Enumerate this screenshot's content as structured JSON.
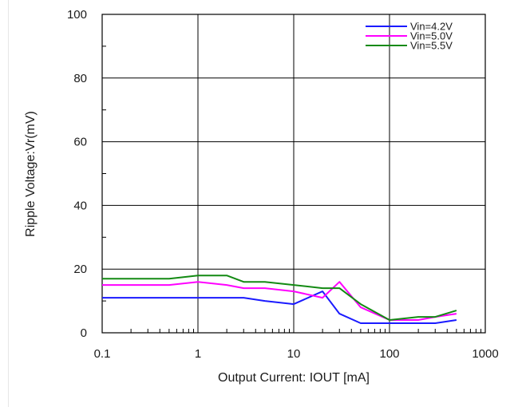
{
  "chart_data": {
    "type": "line",
    "xlabel": "Output Current: IOUT [mA]",
    "ylabel": "Ripple Voltage:Vr(mV)",
    "x_scale": "log",
    "xlim": [
      0.1,
      1000
    ],
    "ylim": [
      0,
      100
    ],
    "x_tick_labels": [
      "0.1",
      "1",
      "10",
      "100",
      "1000"
    ],
    "x_tick_values": [
      0.1,
      1,
      10,
      100,
      1000
    ],
    "y_tick_labels": [
      "0",
      "20",
      "40",
      "60",
      "80",
      "100"
    ],
    "y_tick_values": [
      0,
      20,
      40,
      60,
      80,
      100
    ],
    "grid": true,
    "legend_position": "top-right",
    "series": [
      {
        "name": "Vin=4.2V",
        "color": "#1a1aff",
        "x": [
          0.1,
          0.5,
          1,
          3,
          5,
          10,
          20,
          30,
          50,
          100,
          200,
          300,
          500
        ],
        "y": [
          11,
          11,
          11,
          11,
          10,
          9,
          13,
          6,
          3,
          3,
          3,
          3,
          4
        ]
      },
      {
        "name": "Vin=5.0V",
        "color": "#ff00ff",
        "x": [
          0.1,
          0.5,
          1,
          2,
          3,
          5,
          10,
          20,
          30,
          50,
          100,
          200,
          300,
          500
        ],
        "y": [
          15,
          15,
          16,
          15,
          14,
          14,
          13,
          11,
          16,
          8,
          4,
          4,
          5,
          6
        ]
      },
      {
        "name": "Vin=5.5V",
        "color": "#138a13",
        "x": [
          0.1,
          0.5,
          1,
          2,
          3,
          5,
          10,
          20,
          30,
          50,
          100,
          200,
          300,
          500
        ],
        "y": [
          17,
          17,
          18,
          18,
          16,
          16,
          15,
          14,
          14,
          9,
          4,
          5,
          5,
          7
        ]
      }
    ]
  }
}
